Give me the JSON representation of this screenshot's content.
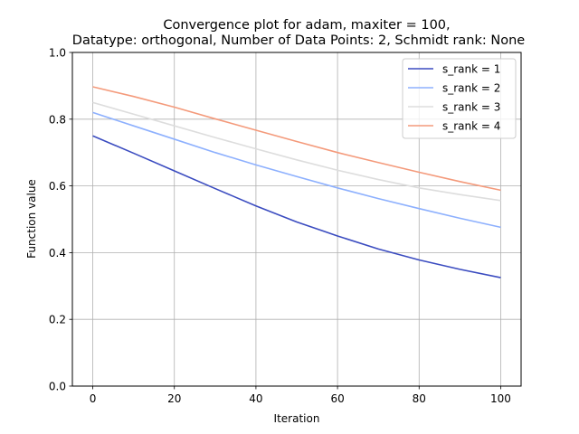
{
  "chart_data": {
    "type": "line",
    "title_lines": [
      "Convergence plot for adam, maxiter = 100,",
      "Datatype: orthogonal, Number of Data Points: 2, Schmidt rank: None"
    ],
    "xlabel": "Iteration",
    "ylabel": "Function value",
    "xlim": [
      -5,
      105
    ],
    "ylim": [
      0,
      1
    ],
    "x_ticks": [
      0,
      20,
      40,
      60,
      80,
      100
    ],
    "y_ticks": [
      0.0,
      0.2,
      0.4,
      0.6,
      0.8,
      1.0
    ],
    "x_tick_labels": [
      "0",
      "20",
      "40",
      "60",
      "80",
      "100"
    ],
    "y_tick_labels": [
      "0.0",
      "0.2",
      "0.4",
      "0.6",
      "0.8",
      "1.0"
    ],
    "grid": true,
    "legend_position": "top-right",
    "x": [
      0,
      10,
      20,
      30,
      40,
      50,
      60,
      70,
      80,
      90,
      100
    ],
    "series": [
      {
        "name": "s_rank = 1",
        "color": "#3b4cc0",
        "values": [
          0.75,
          0.698,
          0.645,
          0.592,
          0.54,
          0.492,
          0.45,
          0.411,
          0.378,
          0.35,
          0.325
        ]
      },
      {
        "name": "s_rank = 2",
        "color": "#8db0fe",
        "values": [
          0.82,
          0.78,
          0.74,
          0.7,
          0.663,
          0.628,
          0.594,
          0.562,
          0.532,
          0.503,
          0.476
        ]
      },
      {
        "name": "s_rank = 3",
        "color": "#dddddd",
        "values": [
          0.85,
          0.815,
          0.78,
          0.745,
          0.711,
          0.678,
          0.647,
          0.619,
          0.594,
          0.574,
          0.556
        ]
      },
      {
        "name": "s_rank = 4",
        "color": "#f49a7b",
        "values": [
          0.897,
          0.868,
          0.836,
          0.801,
          0.767,
          0.733,
          0.7,
          0.67,
          0.641,
          0.613,
          0.587
        ]
      }
    ]
  }
}
